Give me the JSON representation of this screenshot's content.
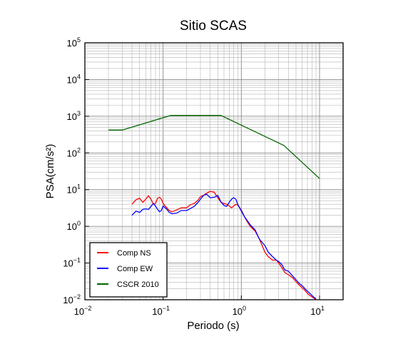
{
  "chart_data": {
    "type": "line",
    "title": "Sitio SCAS",
    "xlabel": "Periodo (s)",
    "ylabel": "PSA(cm/s²)",
    "xscale": "log",
    "yscale": "log",
    "xlim": [
      0.01,
      20
    ],
    "ylim": [
      0.01,
      100000
    ],
    "grid": true,
    "legend_position": "bottom-left",
    "x_ticks": [
      {
        "value": 0.01,
        "mantissa": "10",
        "exponent": "−2"
      },
      {
        "value": 0.1,
        "mantissa": "10",
        "exponent": "−1"
      },
      {
        "value": 1,
        "mantissa": "10",
        "exponent": "0"
      },
      {
        "value": 10,
        "mantissa": "10",
        "exponent": "1"
      }
    ],
    "y_ticks": [
      {
        "value": 0.01,
        "mantissa": "10",
        "exponent": "−2"
      },
      {
        "value": 0.1,
        "mantissa": "10",
        "exponent": "−1"
      },
      {
        "value": 1,
        "mantissa": "10",
        "exponent": "0"
      },
      {
        "value": 10,
        "mantissa": "10",
        "exponent": "1"
      },
      {
        "value": 100,
        "mantissa": "10",
        "exponent": "2"
      },
      {
        "value": 1000,
        "mantissa": "10",
        "exponent": "3"
      },
      {
        "value": 10000,
        "mantissa": "10",
        "exponent": "4"
      },
      {
        "value": 100000,
        "mantissa": "10",
        "exponent": "5"
      }
    ],
    "series": [
      {
        "name": "Comp NS",
        "color": "#ff0000",
        "x": [
          0.04,
          0.045,
          0.05,
          0.055,
          0.06,
          0.065,
          0.07,
          0.075,
          0.08,
          0.085,
          0.09,
          0.095,
          0.1,
          0.11,
          0.12,
          0.13,
          0.15,
          0.17,
          0.2,
          0.22,
          0.25,
          0.28,
          0.3,
          0.33,
          0.36,
          0.4,
          0.45,
          0.5,
          0.55,
          0.6,
          0.65,
          0.7,
          0.75,
          0.8,
          0.85,
          0.9,
          1.0,
          1.1,
          1.2,
          1.3,
          1.5,
          1.7,
          2.0,
          2.2,
          2.5,
          2.8,
          3.0,
          3.3,
          3.6,
          4.0,
          4.5,
          5.0,
          5.5,
          6.0,
          6.5,
          7.0,
          7.5,
          8.0,
          9.0
        ],
        "y": [
          4.0,
          5.3,
          5.8,
          4.5,
          5.5,
          6.8,
          5.5,
          4.0,
          4.2,
          5.8,
          6.2,
          5.5,
          4.2,
          3.3,
          2.7,
          2.5,
          2.8,
          3.2,
          3.2,
          3.8,
          4.2,
          5.2,
          6.5,
          7.0,
          8.0,
          9.0,
          8.5,
          6.0,
          4.5,
          4.2,
          4.0,
          3.6,
          3.2,
          3.6,
          4.0,
          3.8,
          2.8,
          1.8,
          1.3,
          1.0,
          0.75,
          0.45,
          0.2,
          0.15,
          0.12,
          0.12,
          0.1,
          0.075,
          0.055,
          0.048,
          0.04,
          0.031,
          0.025,
          0.021,
          0.018,
          0.015,
          0.013,
          0.012,
          0.01
        ]
      },
      {
        "name": "Comp EW",
        "color": "#0000ff",
        "x": [
          0.04,
          0.045,
          0.05,
          0.055,
          0.06,
          0.065,
          0.07,
          0.075,
          0.08,
          0.085,
          0.09,
          0.095,
          0.1,
          0.11,
          0.12,
          0.13,
          0.15,
          0.17,
          0.2,
          0.22,
          0.25,
          0.28,
          0.3,
          0.33,
          0.36,
          0.4,
          0.45,
          0.5,
          0.55,
          0.6,
          0.65,
          0.7,
          0.75,
          0.8,
          0.85,
          0.9,
          1.0,
          1.1,
          1.2,
          1.3,
          1.5,
          1.7,
          2.0,
          2.2,
          2.5,
          2.8,
          3.0,
          3.3,
          3.6,
          4.0,
          4.5,
          5.0,
          5.5,
          6.0,
          6.5,
          7.0,
          7.5,
          8.0,
          9.0
        ],
        "y": [
          2.0,
          2.6,
          2.4,
          2.9,
          3.0,
          2.9,
          3.5,
          4.2,
          3.6,
          2.9,
          2.5,
          2.7,
          3.6,
          3.0,
          2.4,
          2.2,
          2.3,
          2.7,
          2.7,
          3.0,
          3.5,
          4.5,
          5.5,
          7.0,
          7.5,
          6.0,
          6.2,
          7.0,
          4.6,
          3.7,
          3.5,
          4.5,
          5.5,
          6.0,
          5.5,
          4.0,
          2.6,
          1.8,
          1.4,
          1.1,
          0.8,
          0.45,
          0.3,
          0.2,
          0.15,
          0.12,
          0.11,
          0.09,
          0.065,
          0.06,
          0.045,
          0.035,
          0.028,
          0.024,
          0.02,
          0.017,
          0.015,
          0.013,
          0.0105
        ]
      },
      {
        "name": "CSCR 2010",
        "color": "#006600",
        "x": [
          0.02,
          0.03,
          0.125,
          0.55,
          3.5,
          10
        ],
        "y": [
          420,
          420,
          1050,
          1050,
          160,
          20
        ]
      }
    ]
  }
}
